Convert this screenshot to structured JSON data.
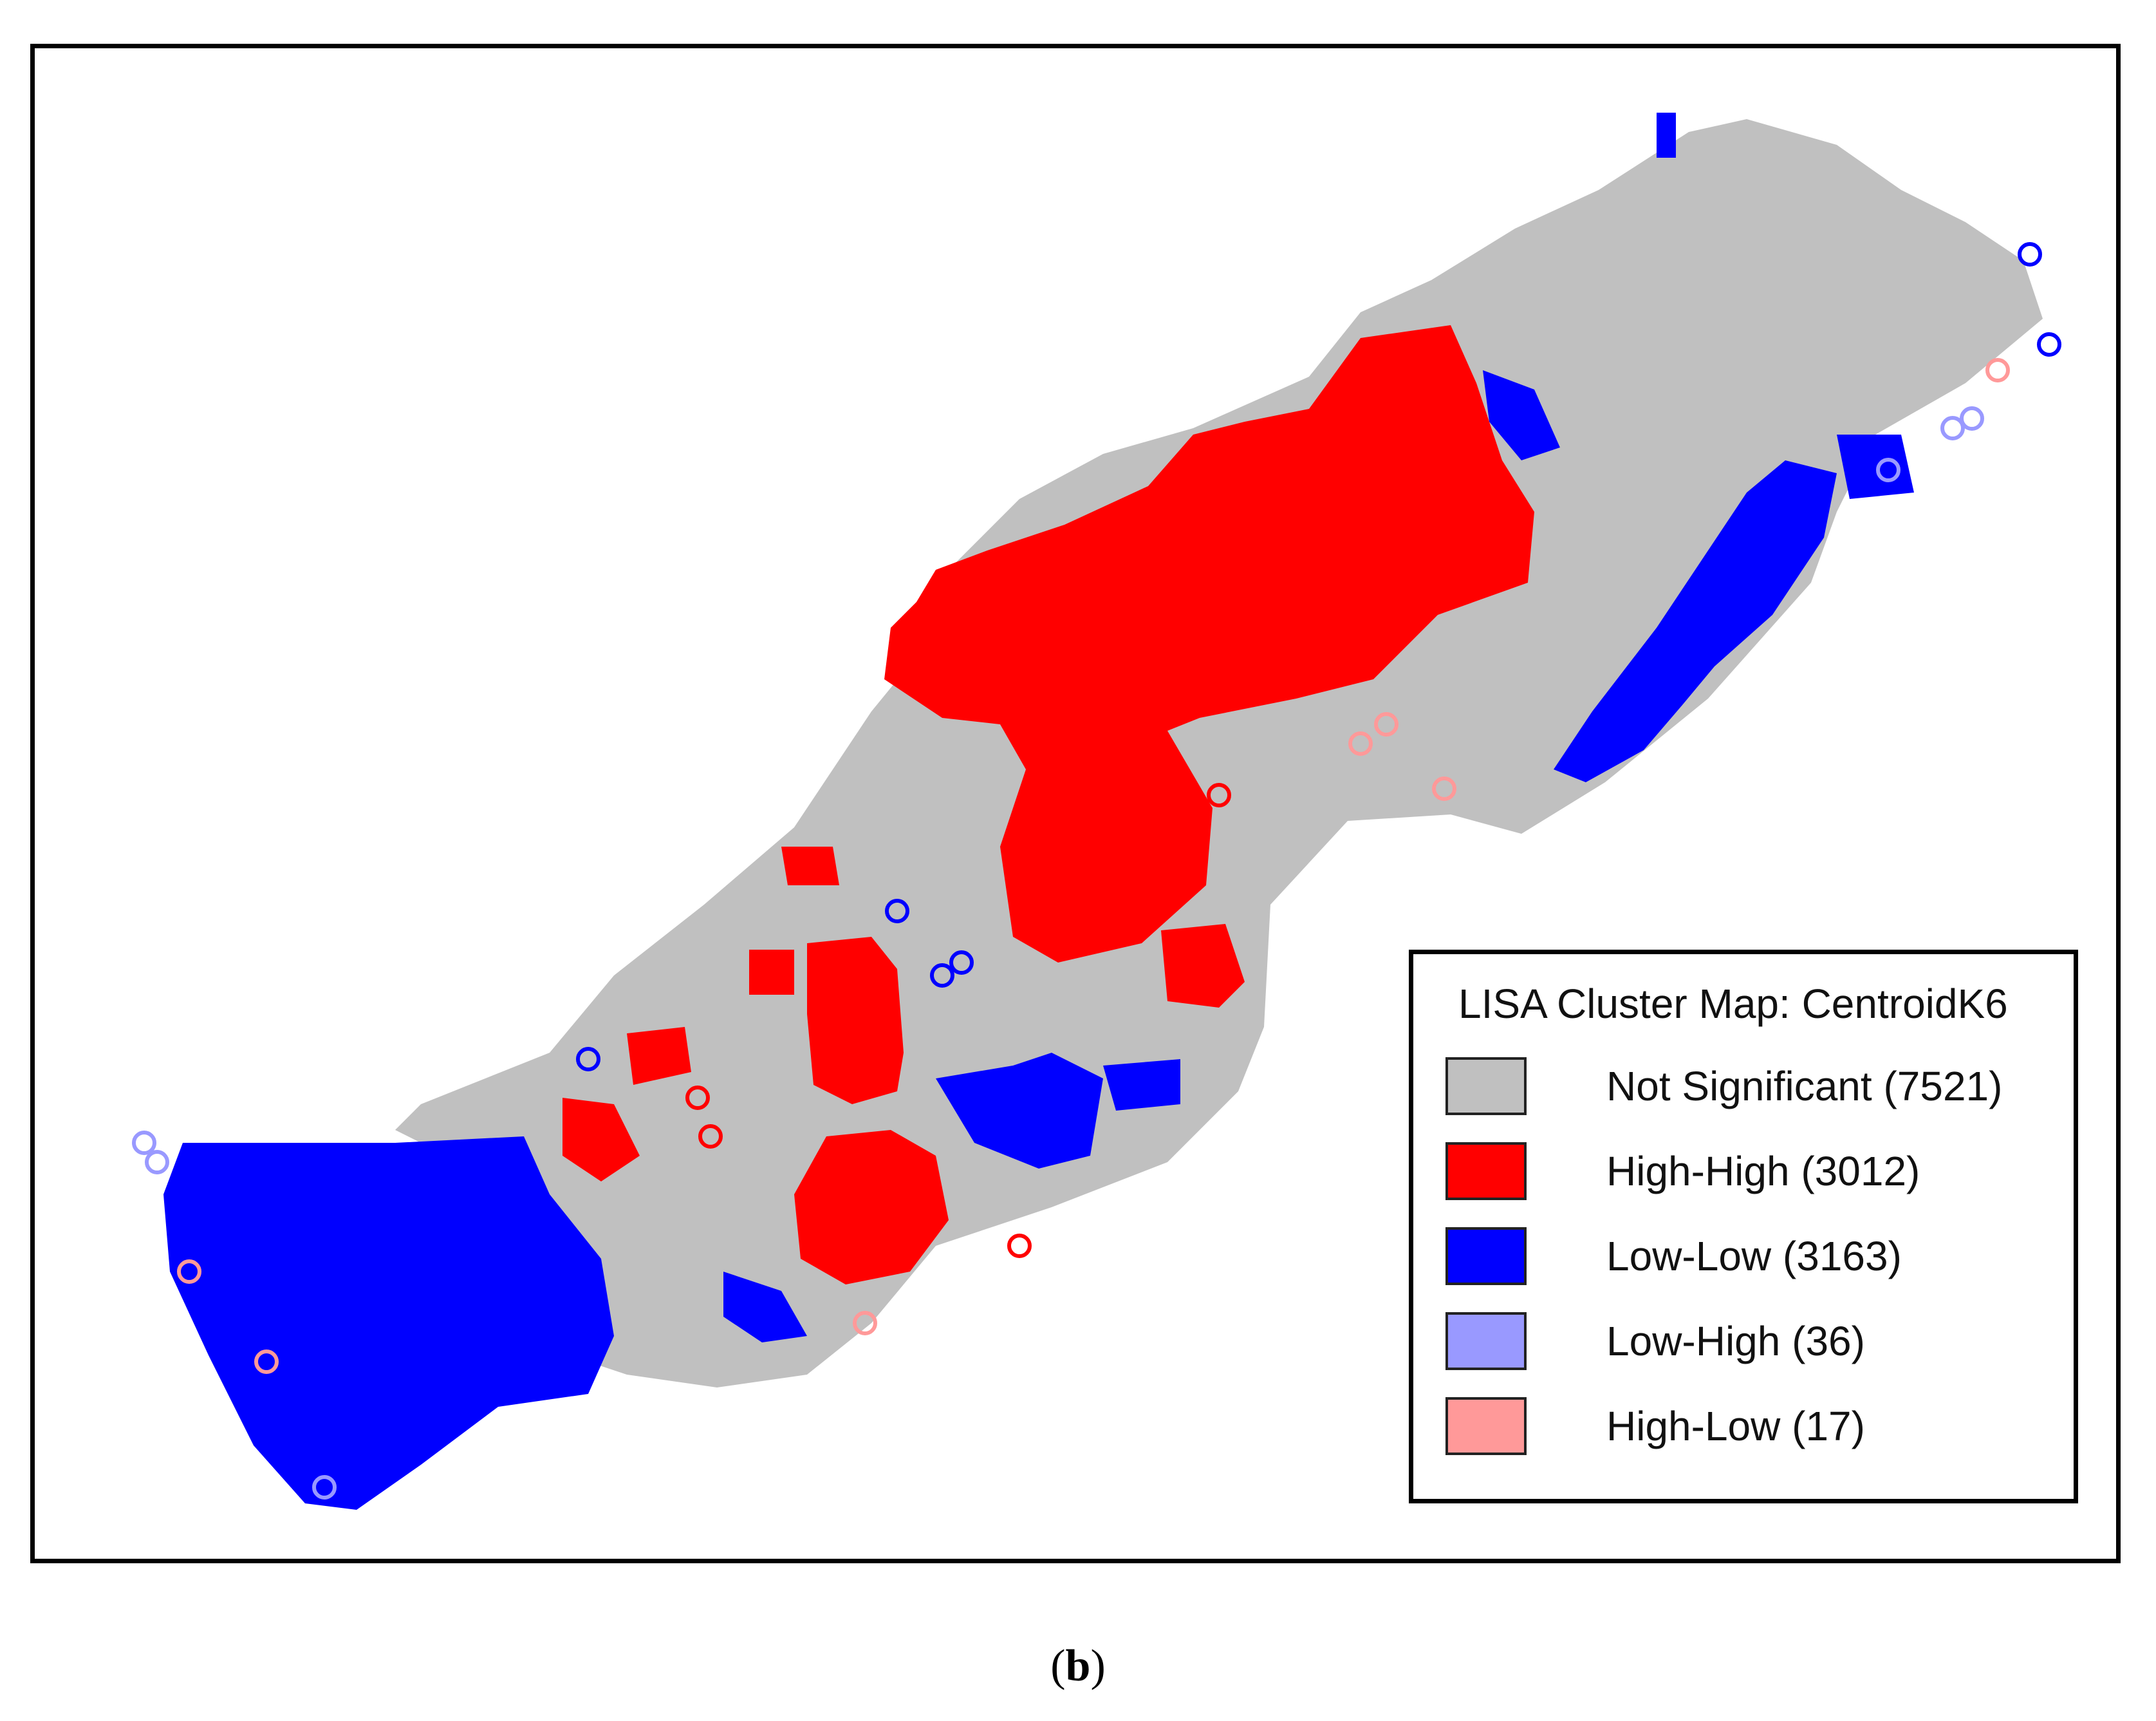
{
  "legend": {
    "title": "LISA Cluster Map: CentroidK6",
    "items": [
      {
        "label": "Not Significant (7521)",
        "color": "#c0c0c0"
      },
      {
        "label": "High-High (3012)",
        "color": "#ff0000"
      },
      {
        "label": "Low-Low (3163)",
        "color": "#0000ff"
      },
      {
        "label": "Low-High (36)",
        "color": "#9999ff"
      },
      {
        "label": "High-Low (17)",
        "color": "#ff9999"
      }
    ]
  },
  "caption": {
    "open": "(",
    "letter": "b",
    "close": ")"
  }
}
